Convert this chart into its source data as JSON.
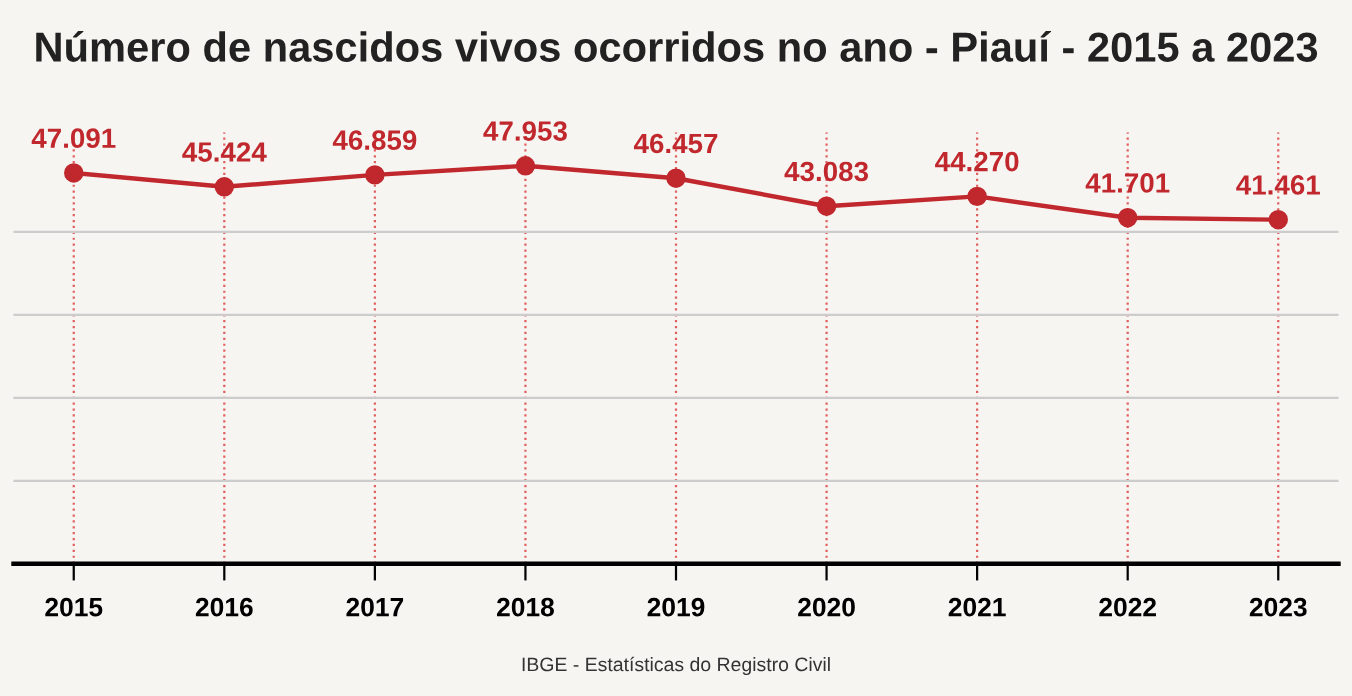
{
  "chart_data": {
    "type": "line",
    "title": "Número de nascidos vivos ocorridos no ano - Piauí - 2015 a 2023",
    "categories": [
      "2015",
      "2016",
      "2017",
      "2018",
      "2019",
      "2020",
      "2021",
      "2022",
      "2023"
    ],
    "series": [
      {
        "color": "#c0282d",
        "values": [
          47091,
          45424,
          46859,
          47953,
          46457,
          43083,
          44270,
          41701,
          41461
        ],
        "value_labels": [
          "47.091",
          "45.424",
          "46.859",
          "47.953",
          "46.457",
          "43.083",
          "44.270",
          "41.701",
          "41.461"
        ]
      }
    ],
    "ylim": [
      0,
      52000
    ],
    "yticks": [
      {
        "value": 0,
        "label": null
      },
      {
        "value": 10000,
        "label": null
      },
      {
        "value": 20000,
        "label": null
      },
      {
        "value": 30000,
        "label": null
      },
      {
        "value": 40000,
        "label": null
      }
    ],
    "grid": true,
    "marker": "circle",
    "line_style": "solid",
    "tick_labels": "x",
    "annotations": [
      "IBGE - Estatísticas do Registro Civil"
    ]
  }
}
